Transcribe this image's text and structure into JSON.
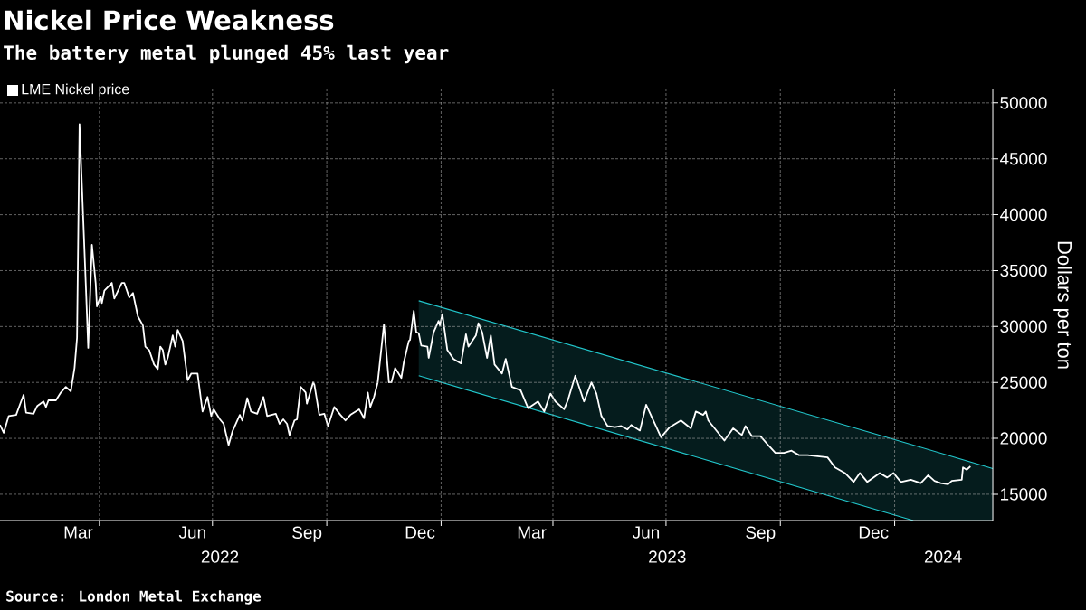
{
  "chart_data": {
    "type": "line",
    "title": "Nickel Price Weakness",
    "subtitle": "The battery metal plunged 45% last year",
    "ylabel": "Dollars per ton",
    "annotations": [
      "Source: London Metal Exchange"
    ],
    "series": [
      {
        "name": "LME Nickel price",
        "color": "#ffffff",
        "x": [
          "2022-01-11",
          "2022-01-14",
          "2022-01-18",
          "2022-01-24",
          "2022-01-30",
          "2022-02-01",
          "2022-02-07",
          "2022-02-10",
          "2022-02-15",
          "2022-02-17",
          "2022-02-19",
          "2022-02-25",
          "2022-03-01",
          "2022-03-05",
          "2022-03-09",
          "2022-03-12",
          "2022-03-14",
          "2022-03-16",
          "2022-03-18",
          "2022-03-21",
          "2022-03-23",
          "2022-03-26",
          "2022-03-29",
          "2022-03-30",
          "2022-04-02",
          "2022-04-03",
          "2022-04-05",
          "2022-04-11",
          "2022-04-13",
          "2022-04-19",
          "2022-04-21",
          "2022-04-25",
          "2022-04-28",
          "2022-05-02",
          "2022-05-06",
          "2022-05-08",
          "2022-05-11",
          "2022-05-15",
          "2022-05-18",
          "2022-05-20",
          "2022-05-22",
          "2022-05-24",
          "2022-05-26",
          "2022-05-30",
          "2022-06-01",
          "2022-06-03",
          "2022-06-07",
          "2022-06-11",
          "2022-06-14",
          "2022-06-19",
          "2022-06-23",
          "2022-06-27",
          "2022-06-30",
          "2022-07-02",
          "2022-07-07",
          "2022-07-10",
          "2022-07-14",
          "2022-07-17",
          "2022-07-23",
          "2022-07-25",
          "2022-07-29",
          "2022-08-01",
          "2022-08-06",
          "2022-08-11",
          "2022-08-14",
          "2022-08-21",
          "2022-08-24",
          "2022-08-27",
          "2022-08-30",
          "2022-09-01",
          "2022-09-05",
          "2022-09-07",
          "2022-09-10",
          "2022-09-14",
          "2022-09-15",
          "2022-09-20",
          "2022-09-21",
          "2022-09-25",
          "2022-09-29",
          "2022-10-02",
          "2022-10-07",
          "2022-10-12",
          "2022-10-16",
          "2022-10-20",
          "2022-10-27",
          "2022-10-31",
          "2022-11-03",
          "2022-11-05",
          "2022-11-08",
          "2022-11-11",
          "2022-11-16",
          "2022-11-20",
          "2022-11-22",
          "2022-11-25",
          "2022-11-30",
          "2022-12-02",
          "2022-12-06",
          "2022-12-07",
          "2022-12-10",
          "2022-12-12",
          "2022-12-14",
          "2022-12-16",
          "2022-12-21",
          "2022-12-22",
          "2022-12-26",
          "2022-12-30",
          "2022-12-31",
          "2023-01-02",
          "2023-01-06",
          "2023-01-11",
          "2023-01-17",
          "2023-01-21",
          "2023-01-23",
          "2023-01-29",
          "2023-01-31",
          "2023-02-03",
          "2023-02-07",
          "2023-02-10",
          "2023-02-13",
          "2023-02-19",
          "2023-02-22",
          "2023-02-27",
          "2023-03-06",
          "2023-03-12",
          "2023-03-20",
          "2023-03-25",
          "2023-03-30",
          "2023-04-03",
          "2023-04-10",
          "2023-04-13",
          "2023-04-19",
          "2023-04-26",
          "2023-05-02",
          "2023-05-06",
          "2023-05-10",
          "2023-05-15",
          "2023-05-21",
          "2023-05-26",
          "2023-05-31",
          "2023-06-03",
          "2023-06-10",
          "2023-06-15",
          "2023-06-22",
          "2023-06-27",
          "2023-07-04",
          "2023-07-13",
          "2023-07-21",
          "2023-07-25",
          "2023-07-31",
          "2023-08-02",
          "2023-08-04",
          "2023-08-17",
          "2023-08-24",
          "2023-08-31",
          "2023-09-03",
          "2023-09-08",
          "2023-09-15",
          "2023-09-22",
          "2023-09-27",
          "2023-10-04",
          "2023-10-10",
          "2023-10-16",
          "2023-10-23",
          "2023-10-31",
          "2023-11-08",
          "2023-11-14",
          "2023-11-22",
          "2023-11-29",
          "2023-12-04",
          "2023-12-10",
          "2023-12-20",
          "2023-12-26",
          "2023-12-31",
          "2024-01-06",
          "2024-01-14",
          "2024-01-22",
          "2024-01-28",
          "2024-02-02",
          "2024-02-07",
          "2024-02-13",
          "2024-02-16",
          "2024-02-24",
          "2024-02-25",
          "2024-02-28",
          "2024-03-02"
        ],
        "values": [
          21200,
          20500,
          22000,
          22100,
          23900,
          22300,
          22200,
          22900,
          23300,
          22800,
          23400,
          23400,
          24100,
          24600,
          24200,
          26300,
          29000,
          48100,
          42400,
          33900,
          28100,
          37300,
          33900,
          31800,
          32700,
          32100,
          33200,
          33900,
          32500,
          33900,
          33900,
          32600,
          33000,
          30900,
          30100,
          28200,
          27900,
          26600,
          26200,
          28200,
          27900,
          26600,
          27200,
          29200,
          28200,
          29700,
          28700,
          25200,
          25800,
          25800,
          22400,
          23700,
          22000,
          22600,
          21700,
          21300,
          19400,
          20600,
          22100,
          21600,
          23600,
          22400,
          22200,
          23700,
          22000,
          22200,
          21300,
          21700,
          21300,
          20300,
          21600,
          21700,
          24600,
          24100,
          23100,
          25000,
          24800,
          22100,
          22200,
          21100,
          22800,
          22100,
          21600,
          22100,
          22600,
          21800,
          24100,
          22800,
          23700,
          25000,
          30200,
          25000,
          25000,
          26300,
          25400,
          26800,
          28700,
          28800,
          31400,
          29500,
          29400,
          28300,
          28200,
          27200,
          29500,
          30500,
          30100,
          31100,
          27900,
          27100,
          26700,
          29300,
          28200,
          29200,
          30300,
          29500,
          27200,
          29200,
          26600,
          25800,
          27100,
          24600,
          24300,
          22700,
          23300,
          22400,
          24000,
          23300,
          22600,
          23400,
          25600,
          23300,
          25000,
          24000,
          22000,
          21100,
          21000,
          21100,
          20800,
          21200,
          20700,
          23000,
          21300,
          20100,
          21000,
          21600,
          20900,
          22400,
          22100,
          22400,
          21600,
          19800,
          20900,
          20300,
          21100,
          20200,
          20200,
          19300,
          18700,
          18700,
          18900,
          18500,
          18500,
          18400,
          18300,
          17400,
          16900,
          16100,
          16900,
          16100,
          16900,
          16500,
          16900,
          16100,
          16300,
          16000,
          16700,
          16200,
          16000,
          15900,
          16200,
          16300,
          17400,
          17200,
          17500
        ]
      },
      {
        "type": "line",
        "color": "#22c7cc",
        "x": [
          "2022-12-14",
          "2024-01-16",
          "2024-03-20"
        ],
        "values": [
          32300,
          19400,
          17300
        ],
        "upper": [
          32300,
          19400,
          17300
        ],
        "lower": [
          25600,
          12650,
          12650
        ]
      },
      {
        "type": "line",
        "color": "#22c7cc",
        "x": [
          "2022-12-14",
          "2024-01-16"
        ],
        "values": [
          25600,
          12650
        ]
      }
    ],
    "xlim": [
      "2022-01-11",
      "2024-03-20"
    ],
    "ylim": [
      12650,
      51200
    ],
    "xticks": [
      {
        "value": "2022-04-01",
        "label": null
      },
      {
        "value": "2022-07-01",
        "label": null
      },
      {
        "value": "2022-10-01",
        "label": null
      },
      {
        "value": "2023-01-01",
        "label": null
      },
      {
        "value": "2023-04-01",
        "label": null
      },
      {
        "value": "2023-07-01",
        "label": null
      },
      {
        "value": "2023-10-01",
        "label": null
      },
      {
        "value": "2024-01-01",
        "label": null
      },
      {
        "value": "2022-03-15",
        "label": "Mar"
      },
      {
        "value": "2022-06-15",
        "label": "Jun"
      },
      {
        "value": "2022-09-15",
        "label": "Sep"
      },
      {
        "value": "2022-12-15",
        "label": "Dec"
      },
      {
        "value": "2023-03-15",
        "label": "Mar"
      },
      {
        "value": "2023-06-15",
        "label": "Jun"
      },
      {
        "value": "2023-09-15",
        "label": "Sep"
      },
      {
        "value": "2023-12-15",
        "label": "Dec"
      }
    ],
    "x2lim": [
      "2022-01-11",
      "2024-03-20"
    ],
    "x2ticks": [
      {
        "value": "2022-07-07",
        "label": "2022"
      },
      {
        "value": "2023-01-01",
        "label": null
      },
      {
        "value": "2023-07-02",
        "label": "2023"
      },
      {
        "value": "2024-01-01",
        "label": null
      },
      {
        "value": "2024-02-09",
        "label": "2024"
      }
    ],
    "yticks": [
      15000,
      20000,
      25000,
      30000,
      35000,
      40000,
      45000,
      50000
    ],
    "grid": true,
    "legend": "top left",
    "marker": "none",
    "line_style": "solid"
  }
}
